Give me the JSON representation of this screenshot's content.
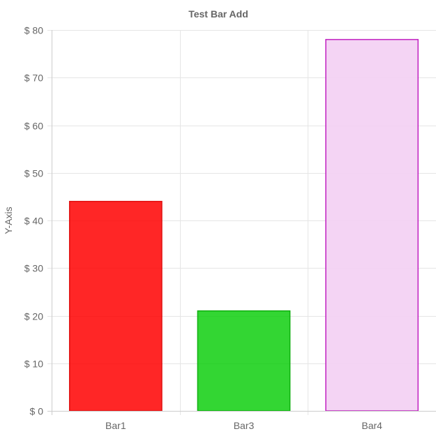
{
  "chart_data": {
    "type": "bar",
    "title": "Test Bar Add",
    "xlabel": "",
    "ylabel": "Y-Axis",
    "categories": [
      "Bar1",
      "Bar3",
      "Bar4"
    ],
    "values": [
      44,
      21,
      78
    ],
    "ylim": [
      0,
      80
    ],
    "yticks": [
      0,
      10,
      20,
      30,
      40,
      50,
      60,
      70,
      80
    ],
    "ytick_prefix": "$ ",
    "grid": true,
    "legend": "none",
    "bar_fill_colors": [
      "#ff0000",
      "#00cc00",
      "#f3cff3"
    ],
    "bar_fill_opacity": [
      0.85,
      0.8,
      0.9
    ],
    "bar_border_colors": [
      "#e01010",
      "#10b010",
      "#c020c0"
    ]
  }
}
